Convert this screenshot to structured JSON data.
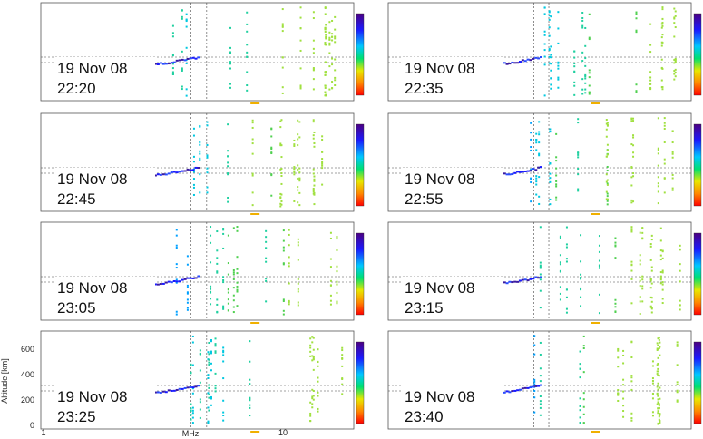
{
  "figure": {
    "y_axis_label": "Altitude [km]",
    "y_tick_labels": [
      "600",
      "400",
      "200",
      "0"
    ],
    "x_tick_labels": [
      "1",
      "10"
    ],
    "x_axis_label": "MHz"
  },
  "panels": [
    {
      "date": "19 Nov 08",
      "time": "22:20"
    },
    {
      "date": "19 Nov 08",
      "time": "22:35"
    },
    {
      "date": "19 Nov 08",
      "time": "22:45"
    },
    {
      "date": "19 Nov 08",
      "time": "22:55"
    },
    {
      "date": "19 Nov 08",
      "time": "23:05"
    },
    {
      "date": "19 Nov 08",
      "time": "23:15"
    },
    {
      "date": "19 Nov 08",
      "time": "23:25"
    },
    {
      "date": "19 Nov 08",
      "time": "23:40"
    }
  ]
}
